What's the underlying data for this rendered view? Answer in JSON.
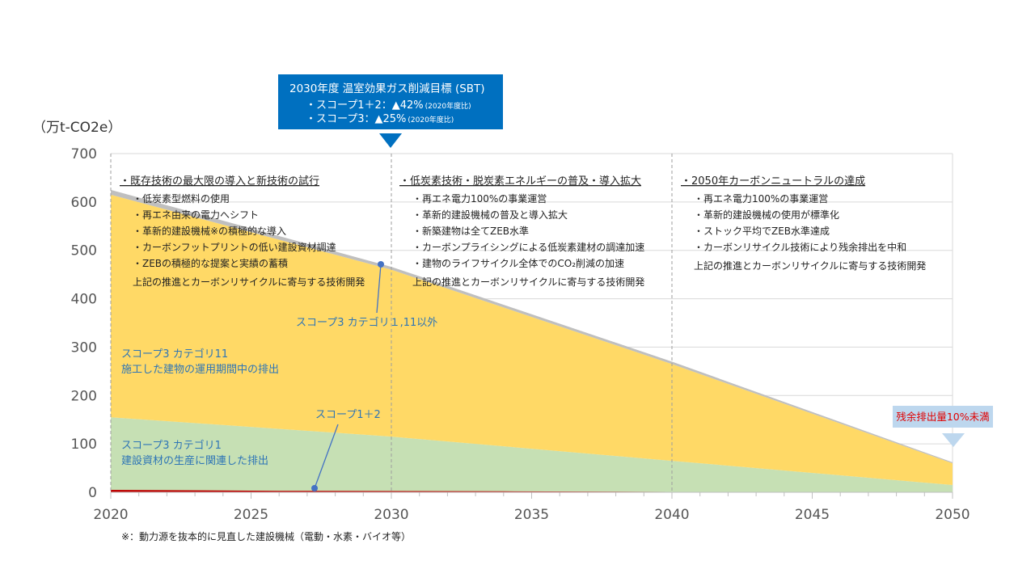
{
  "chart_data": {
    "type": "area",
    "stacked": true,
    "x": [
      2020,
      2030,
      2040,
      2050
    ],
    "xlim": [
      2020,
      2050
    ],
    "ylim": [
      0,
      700
    ],
    "ylabel": "（万t-CO2e）",
    "x_ticks": [
      "2020",
      "2025",
      "2030",
      "2035",
      "2040",
      "2045",
      "2050"
    ],
    "y_ticks": [
      "0",
      "100",
      "200",
      "300",
      "400",
      "500",
      "600",
      "700"
    ],
    "series": [
      {
        "name": "スコープ1＋2",
        "color": "#c00000",
        "x": [
          2020,
          2026,
          2034,
          2043.5
        ],
        "values": [
          5,
          3,
          2,
          0
        ]
      },
      {
        "name": "スコープ3 カテゴリ1",
        "color": "#c6e0b4",
        "values": [
          155,
          115,
          65,
          15
        ]
      },
      {
        "name": "スコープ3 カテゴリ11",
        "color": "#ffd966",
        "values": [
          460,
          345,
          200,
          45
        ]
      },
      {
        "name": "スコープ3 カテゴリ１,11以外",
        "color": "#bfbfbf",
        "values": [
          10,
          6,
          5,
          2
        ]
      }
    ],
    "grid": true
  },
  "sbt_box": {
    "title": "2030年度 温室効果ガス削減目標 (SBT)",
    "line1_main": "・スコープ1＋2：▲42%",
    "line1_small": "(2020年度比)",
    "line2_main": "・スコープ3：▲25%",
    "line2_small": "(2020年度比)",
    "color": "#0070c0"
  },
  "phases": [
    {
      "heading": "・既存技術の最大限の導入と新技術の試行",
      "items": [
        "・低炭素型燃料の使用",
        "・再エネ由来の電力へシフト",
        "・革新的建設機械※の積極的な導入",
        "・カーボンフットプリントの低い建設資材調達",
        "・ZEBの積極的な提案と実績の蓄積"
      ],
      "footer": "上記の推進とカーボンリサイクルに寄与する技術開発"
    },
    {
      "heading": "・低炭素技術・脱炭素エネルギーの普及・導入拡大",
      "items": [
        "・再エネ電力100%の事業運営",
        "・革新的建設機械の普及と導入拡大",
        "・新築建物は全てZEB水準",
        "・カーボンプライシングによる低炭素建材の調達加速",
        "・建物のライフサイクル全体でのCO₂削減の加速"
      ],
      "footer": "上記の推進とカーボンリサイクルに寄与する技術開発"
    },
    {
      "heading": "・2050年カーボンニュートラルの達成",
      "items": [
        "・再エネ電力100%の事業運営",
        "・革新的建設機械の使用が標準化",
        "・ストック平均でZEB水準達成",
        "・カーボンリサイクル技術により残余排出を中和"
      ],
      "footer": "上記の推進とカーボンリサイクルに寄与する技術開発"
    }
  ],
  "labels": {
    "cat11_line1": "スコープ3 カテゴリ11",
    "cat11_line2": "施工した建物の運用期間中の排出",
    "cat1_line1": "スコープ3 カテゴリ1",
    "cat1_line2": "建設資材の生産に関連した排出",
    "other": "スコープ3 カテゴリ１,11以外",
    "scope12": "スコープ1＋2",
    "residual": "残余排出量10%未満",
    "footnote": "※：動力源を抜本的に見直した建設機械（電動・水素・バイオ等）"
  },
  "colors": {
    "label_blue": "#2e75b6",
    "residual_text": "#e00000",
    "residual_bg": "#bdd7ee",
    "marker_blue": "#4472c4",
    "grid": "#d9d9d9"
  }
}
